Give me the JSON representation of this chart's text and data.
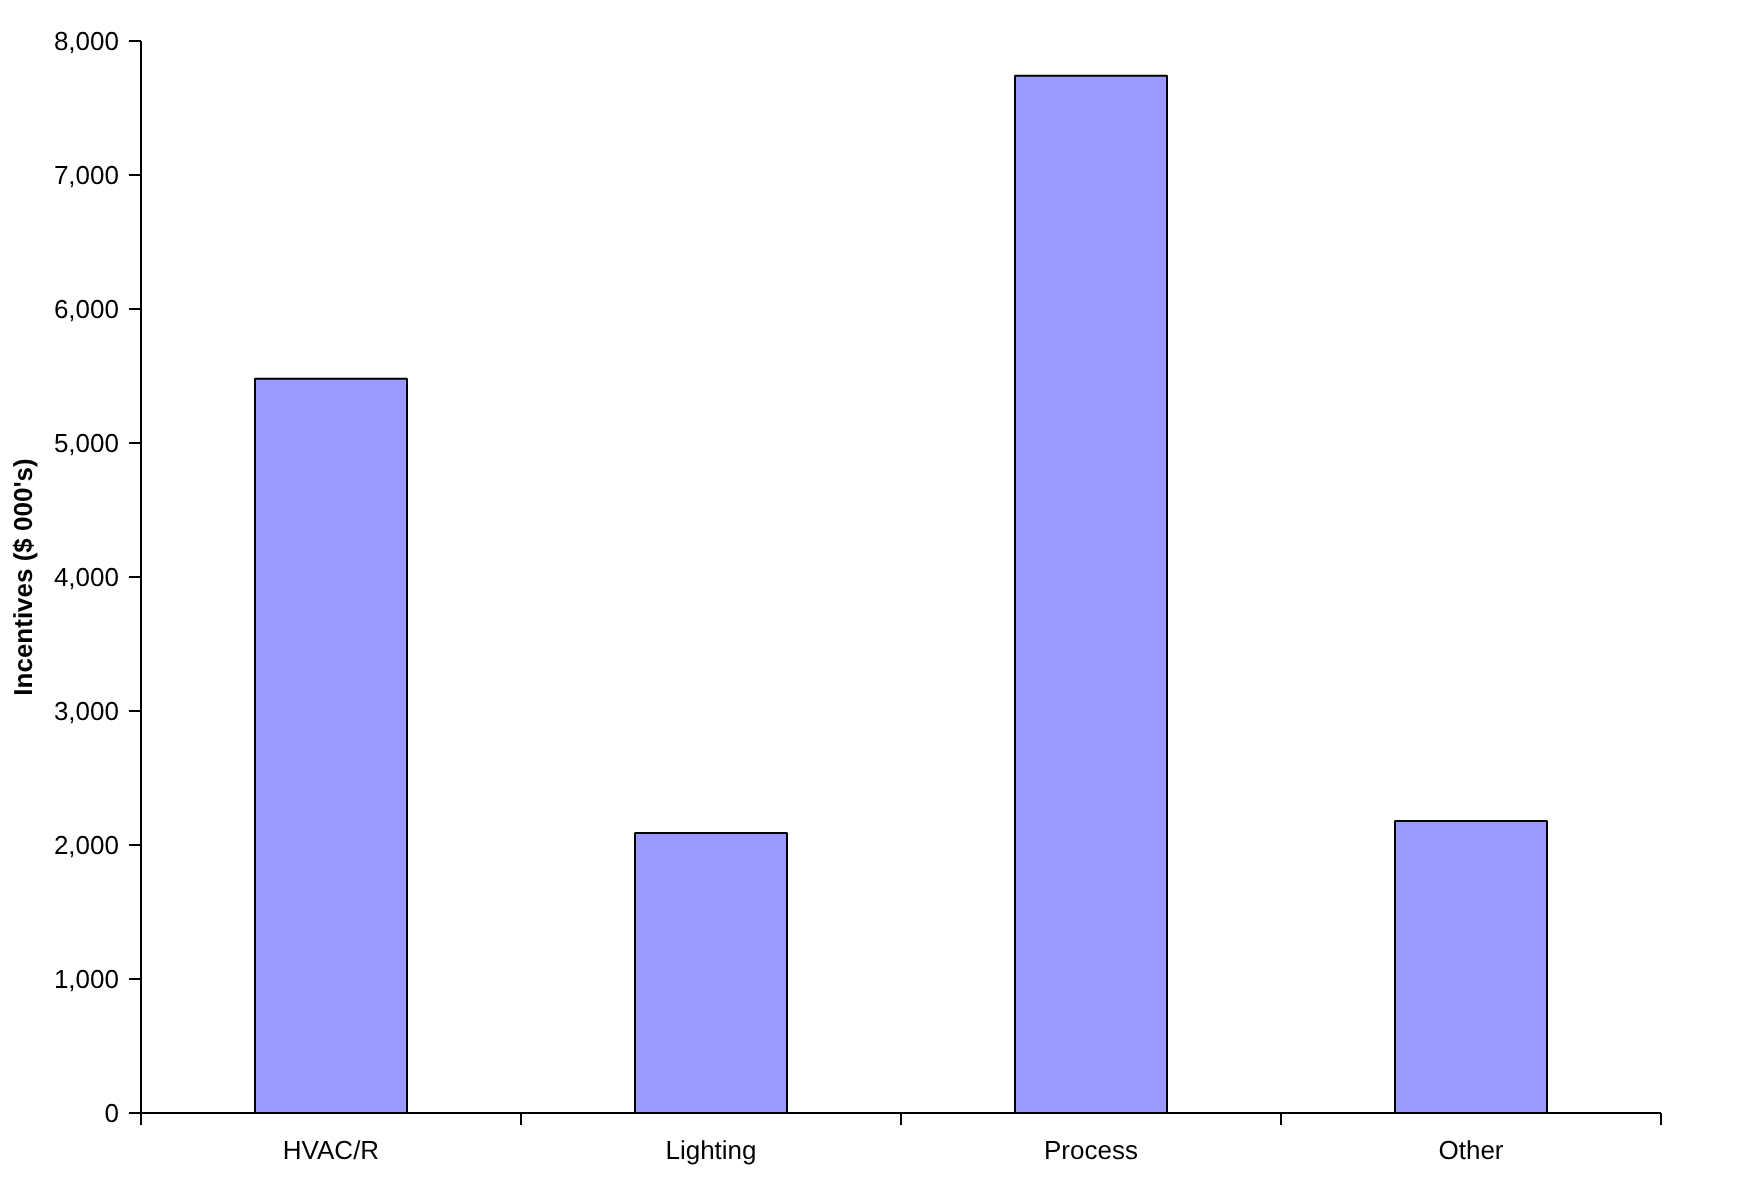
{
  "chart_data": {
    "type": "bar",
    "ylabel": "Incentives ($ 000's)",
    "categories": [
      "HVAC/R",
      "Lighting",
      "Process",
      "Other"
    ],
    "values": [
      5480,
      2090,
      7740,
      2180
    ],
    "color": "#9999ff",
    "ylim": [
      0,
      8000
    ],
    "yticks": [
      {
        "value": 0,
        "label": "0"
      },
      {
        "value": 1000,
        "label": "1,000"
      },
      {
        "value": 2000,
        "label": "2,000"
      },
      {
        "value": 3000,
        "label": "3,000"
      },
      {
        "value": 4000,
        "label": "4,000"
      },
      {
        "value": 5000,
        "label": "5,000"
      },
      {
        "value": 6000,
        "label": "6,000"
      },
      {
        "value": 7000,
        "label": "7,000"
      },
      {
        "value": 8000,
        "label": "8,000"
      }
    ],
    "grid": false
  }
}
